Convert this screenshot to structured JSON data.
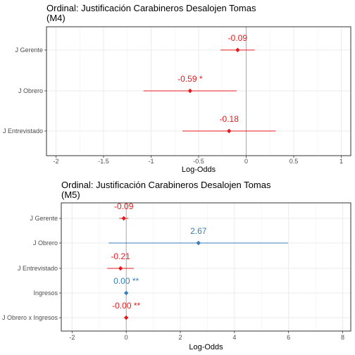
{
  "colors": {
    "significant_negative": "#e41a1c",
    "positive": "#377eb8",
    "panel_border": "#333333",
    "grid": "#ebebeb"
  },
  "chart_data": [
    {
      "type": "coefficient-plot",
      "title": "Ordinal: Justificación Carabineros Desalojen Tomas\n(M4)",
      "xlabel": "Log-Odds",
      "xlim": [
        -2.1,
        1.1
      ],
      "xticks": [
        -2,
        -1.5,
        -1,
        -0.5,
        0,
        0.5,
        1
      ],
      "xtick_labels": [
        "-2",
        "-1.5",
        "-1",
        "-0.5",
        "0",
        "0.5",
        "1"
      ],
      "grid": true,
      "reference_line": 0,
      "rows": [
        {
          "term": "J Gerente",
          "estimate": -0.09,
          "lower": -0.27,
          "upper": 0.09,
          "label": "-0.09",
          "color": "#e41a1c"
        },
        {
          "term": "J Obrero",
          "estimate": -0.59,
          "lower": -1.08,
          "upper": -0.1,
          "label": "-0.59 *",
          "color": "#e41a1c"
        },
        {
          "term": "J Entrevistado",
          "estimate": -0.18,
          "lower": -0.67,
          "upper": 0.31,
          "label": "-0.18",
          "color": "#e41a1c"
        }
      ]
    },
    {
      "type": "coefficient-plot",
      "title": "Ordinal: Justificación Carabineros Desalojen Tomas\n(M5)",
      "xlabel": "Log-Odds",
      "xlim": [
        -2.4,
        8.3
      ],
      "xticks": [
        -2,
        0,
        2,
        4,
        6,
        8
      ],
      "xtick_labels": [
        "-2",
        "0",
        "2",
        "4",
        "6",
        "8"
      ],
      "grid": true,
      "reference_line": 0,
      "rows": [
        {
          "term": "J Gerente",
          "estimate": -0.09,
          "lower": -0.26,
          "upper": 0.08,
          "label": "-0.09",
          "color": "#e41a1c"
        },
        {
          "term": "J Obrero",
          "estimate": 2.67,
          "lower": -0.65,
          "upper": 5.98,
          "label": "2.67",
          "color": "#377eb8"
        },
        {
          "term": "J Entrevistado",
          "estimate": -0.21,
          "lower": -0.7,
          "upper": 0.28,
          "label": "-0.21",
          "color": "#e41a1c"
        },
        {
          "term": "Ingresos",
          "estimate": 0.0,
          "lower": 0.0,
          "upper": 0.0,
          "label": "0.00 **",
          "color": "#377eb8"
        },
        {
          "term": "J Obrero x Ingresos",
          "estimate": -0.0,
          "lower": -0.0,
          "upper": 0.0,
          "label": "-0.00 **",
          "color": "#e41a1c"
        }
      ]
    }
  ]
}
